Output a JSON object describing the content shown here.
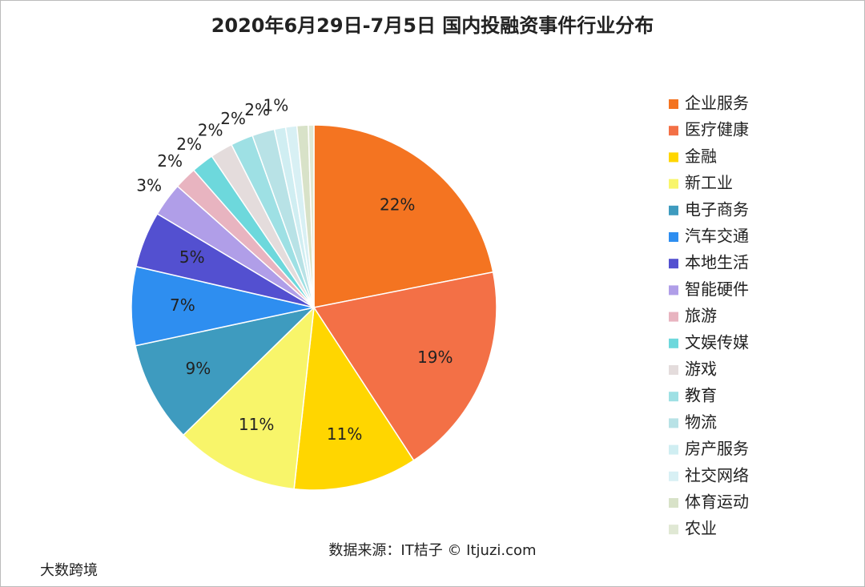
{
  "chart_data": {
    "type": "pie",
    "title": "2020年6月29日-7月5日 国内投融资事件行业分布",
    "source": "数据来源：IT桔子 © Itjuzi.com",
    "watermark": "大数跨境",
    "legend": "right",
    "categories": [
      "企业服务",
      "医疗健康",
      "金融",
      "新工业",
      "电子商务",
      "汽车交通",
      "本地生活",
      "智能硬件",
      "旅游",
      "文娱传媒",
      "游戏",
      "教育",
      "物流",
      "房产服务",
      "社交网络",
      "体育运动",
      "农业"
    ],
    "values": [
      22,
      19,
      11,
      11,
      9,
      7,
      5,
      3,
      2,
      2,
      2,
      2,
      2,
      1,
      1,
      1,
      0.5
    ],
    "value_labels": [
      "22%",
      "19%",
      "11%",
      "11%",
      "9%",
      "7%",
      "5%",
      "3%",
      "2%",
      "2%",
      "2%",
      "2%",
      "2%",
      "1%",
      null,
      null,
      null
    ],
    "colors": [
      "#f47421",
      "#f37046",
      "#ffd600",
      "#f8f56a",
      "#3e9bbf",
      "#2e8ef0",
      "#5350d0",
      "#b09ee8",
      "#e8b4c0",
      "#6dd8dc",
      "#e4dcdc",
      "#9ee0e4",
      "#b8e2e6",
      "#d0eef2",
      "#d8f0f4",
      "#d8e2c8",
      "#e0e8d4"
    ]
  }
}
